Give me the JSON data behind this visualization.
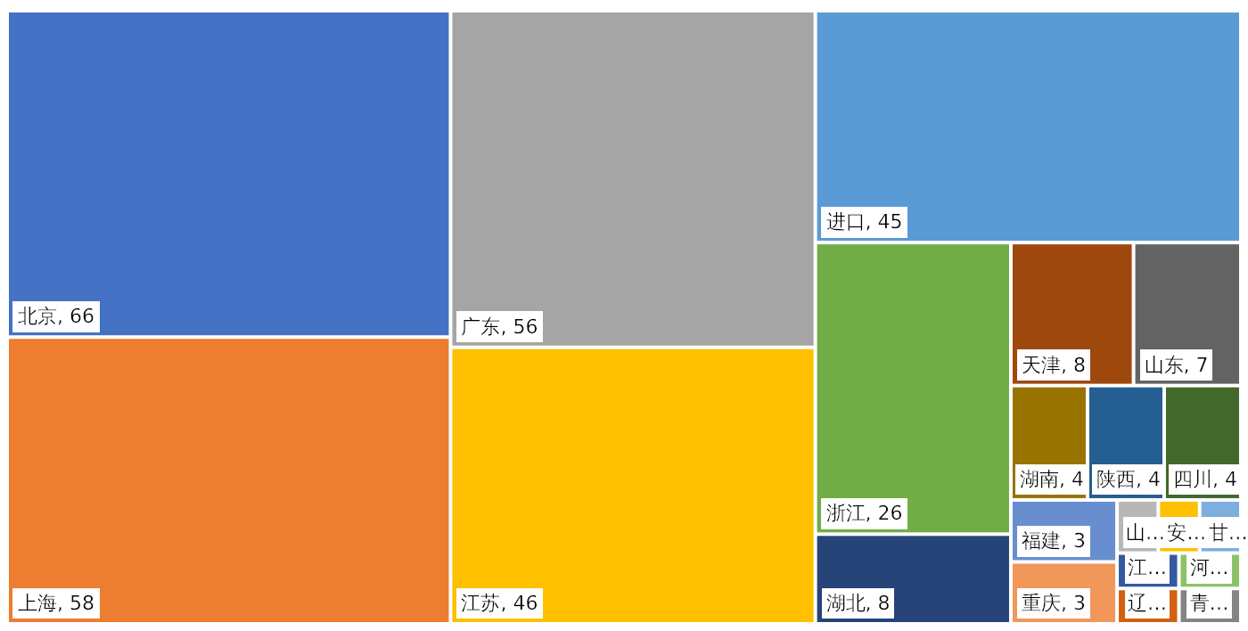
{
  "chart_data": {
    "type": "other",
    "categories": [
      "北京",
      "上海",
      "广东",
      "江苏",
      "进口",
      "浙江",
      "湖北",
      "天津",
      "山东",
      "湖南",
      "陕西",
      "四川",
      "福建",
      "重庆",
      "山…",
      "安…",
      "甘…",
      "江…",
      "辽…",
      "河…",
      "青…"
    ],
    "values": [
      66,
      58,
      56,
      46,
      45,
      26,
      8,
      8,
      7,
      4,
      4,
      4,
      3,
      3,
      null,
      null,
      null,
      null,
      null,
      null,
      null
    ],
    "colors": [
      "#4472c4",
      "#ed7d31",
      "#a5a5a5",
      "#ffc000",
      "#5b9bd5",
      "#70ad47",
      "#264478",
      "#9e480e",
      "#636363",
      "#997300",
      "#255e91",
      "#43682b",
      "#698ed0",
      "#f1975a",
      "#b7b7b7",
      "#ffc000",
      "#7cafdd",
      "#335aa1",
      "#d26012",
      "#8cc168",
      "#848484"
    ],
    "value_labels": [
      ", 66",
      ", 58",
      ", 56",
      ", 46",
      ", 45",
      ", 26",
      ", 8",
      ", 8",
      ", 7",
      ", 4",
      ", 4",
      ", 4",
      ", 3",
      ", 3",
      null,
      null,
      null,
      null,
      null,
      null,
      null
    ]
  }
}
